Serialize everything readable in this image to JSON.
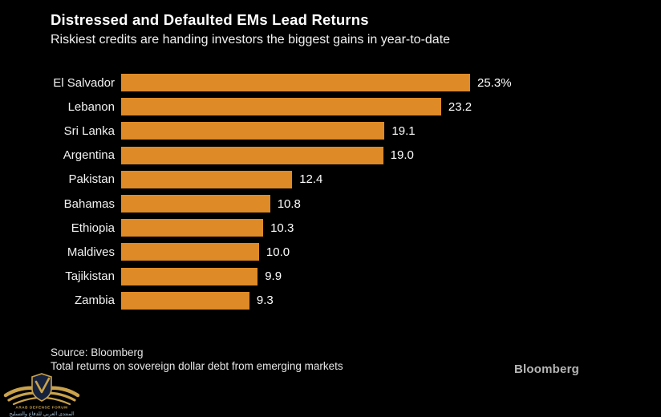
{
  "header": {
    "title": "Distressed and Defaulted EMs Lead Returns",
    "subtitle": "Riskiest credits are handing investors the biggest gains in year-to-date"
  },
  "chart_data": {
    "type": "bar",
    "orientation": "horizontal",
    "categories": [
      "El Salvador",
      "Lebanon",
      "Sri Lanka",
      "Argentina",
      "Pakistan",
      "Bahamas",
      "Ethiopia",
      "Maldives",
      "Tajikistan",
      "Zambia"
    ],
    "values": [
      25.3,
      23.2,
      19.1,
      19.0,
      12.4,
      10.8,
      10.3,
      10.0,
      9.9,
      9.3
    ],
    "value_labels": [
      "25.3%",
      "23.2",
      "19.1",
      "19.0",
      "12.4",
      "10.8",
      "10.3",
      "10.0",
      "9.9",
      "9.3"
    ],
    "title": "Distressed and Defaulted EMs Lead Returns",
    "xlabel": "",
    "ylabel": "",
    "xlim": [
      0,
      25.3
    ],
    "grid": false,
    "legend": false,
    "bar_color": "#dd8a27"
  },
  "footer": {
    "source_line1": "Source: Bloomberg",
    "source_line2": "Total returns on sovereign dollar debt from emerging markets",
    "brand": "Bloomberg"
  },
  "watermark": {
    "line1": "ARAB DEFENSE FORUM",
    "line2": "المنتدى العربي للدفاع والتسليح"
  },
  "colors": {
    "background": "#000000",
    "bar": "#dd8a27",
    "title_text": "#ffffff",
    "label_text": "#f2f2f2",
    "source_text": "#e6e6e6",
    "brand_text": "#b5b5b5",
    "watermark_gold": "#c9a24b",
    "watermark_navy": "#16213d",
    "watermark_arabic": "#9db7cc"
  }
}
